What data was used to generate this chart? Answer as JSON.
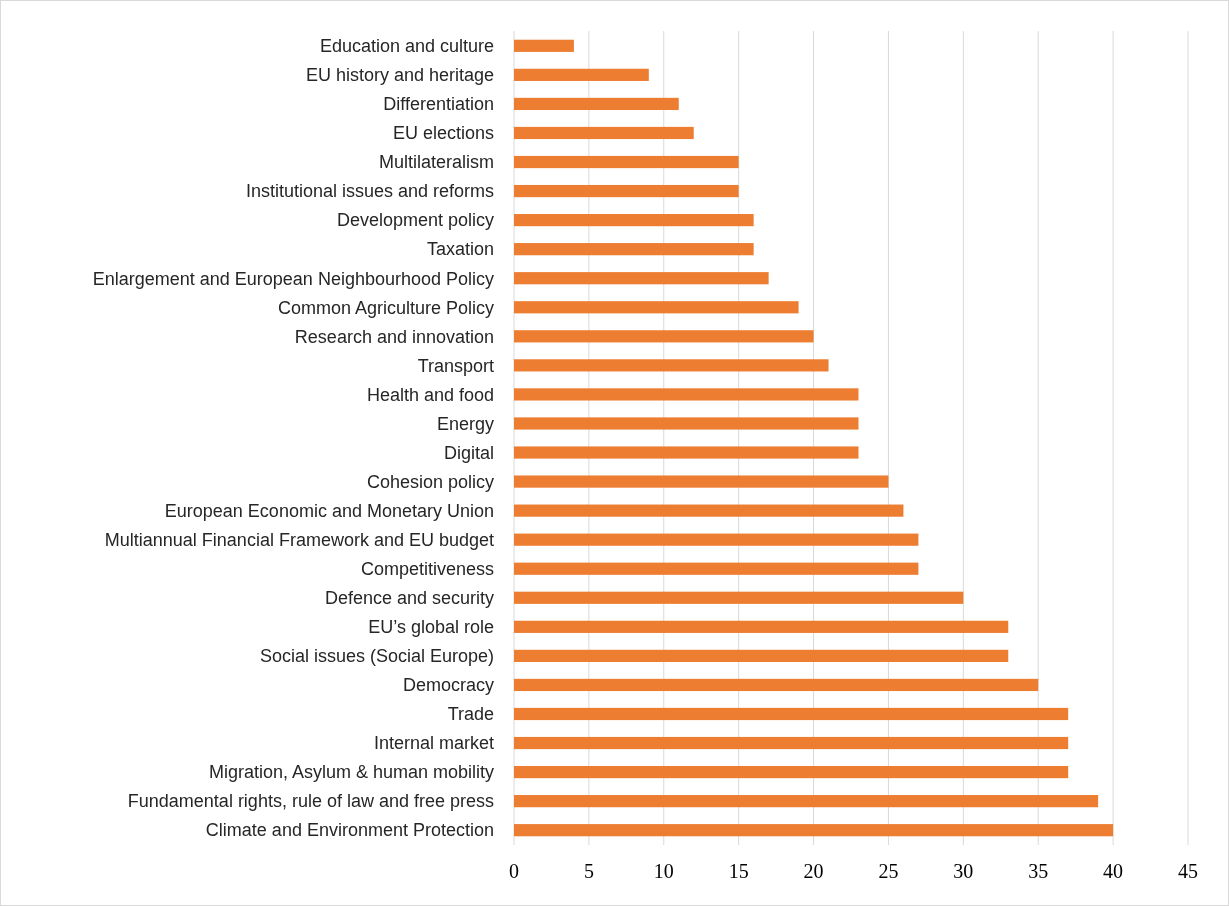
{
  "chart_data": {
    "type": "bar",
    "orientation": "horizontal",
    "categories": [
      "Education and culture",
      "EU history and heritage",
      "Differentiation",
      "EU elections",
      "Multilateralism",
      "Institutional issues and reforms",
      "Development policy",
      "Taxation",
      "Enlargement and European Neighbourhood Policy",
      "Common Agriculture Policy",
      "Research and innovation",
      "Transport",
      "Health and food",
      "Energy",
      "Digital",
      "Cohesion policy",
      "European Economic and Monetary Union",
      "Multiannual Financial Framework and EU budget",
      "Competitiveness",
      "Defence and security",
      "EU’s global role",
      "Social issues (Social Europe)",
      "Democracy",
      "Trade",
      "Internal market",
      "Migration, Asylum & human mobility",
      "Fundamental rights, rule of law and free press",
      "Climate and Environment Protection"
    ],
    "values": [
      4,
      9,
      11,
      12,
      15,
      15,
      16,
      16,
      17,
      19,
      20,
      21,
      23,
      23,
      23,
      25,
      26,
      27,
      27,
      30,
      33,
      33,
      35,
      37,
      37,
      37,
      39,
      40
    ],
    "color": "#ed7d31",
    "xlim": [
      0,
      45
    ],
    "xticks": [
      0,
      5,
      10,
      15,
      20,
      25,
      30,
      35,
      40,
      45
    ],
    "grid": "x"
  }
}
